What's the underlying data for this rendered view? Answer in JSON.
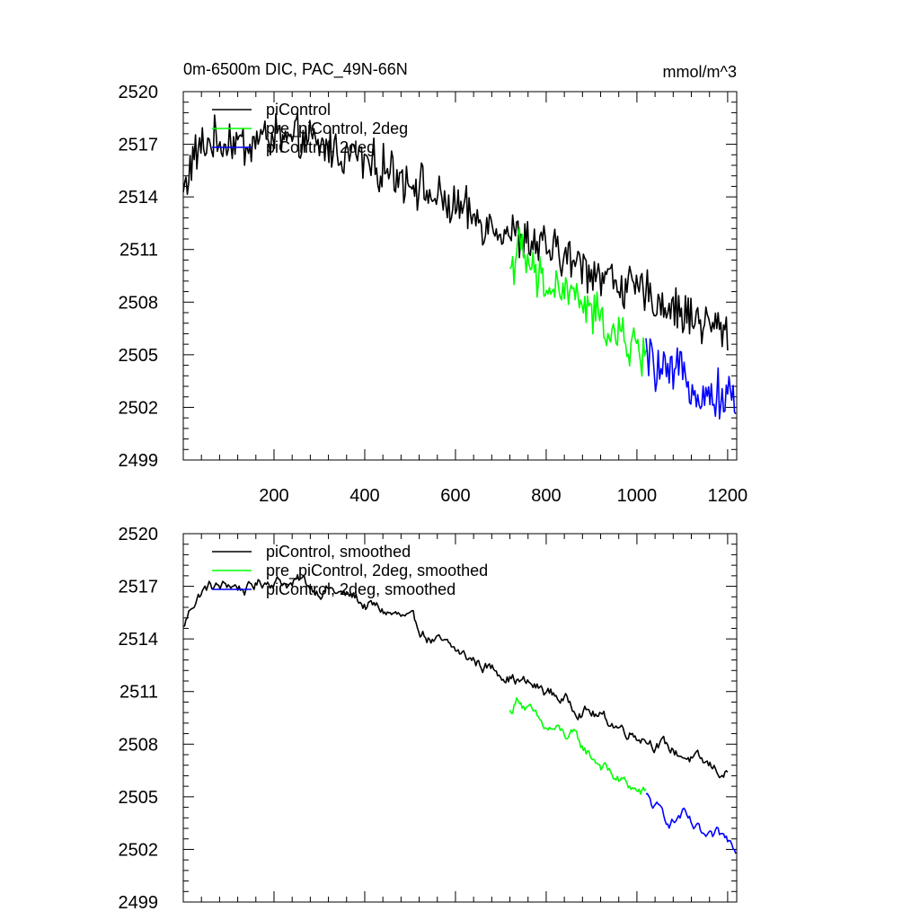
{
  "figure": {
    "title_left": "0m-6500m DIC, PAC_49N-66N",
    "title_right": "mmol/m^3"
  },
  "chart_data": [
    {
      "type": "line",
      "panel": "top",
      "xlim": [
        0,
        1220
      ],
      "ylim": [
        2499,
        2520
      ],
      "xticks": [
        200,
        400,
        600,
        800,
        1000,
        1200
      ],
      "xtick_labels": [
        "200",
        "400",
        "600",
        "800",
        "1000",
        "1200"
      ],
      "yticks": [
        2499,
        2502,
        2505,
        2508,
        2511,
        2514,
        2517,
        2520
      ],
      "ytick_labels": [
        "2499",
        "2502",
        "2505",
        "2508",
        "2511",
        "2514",
        "2517",
        "2520"
      ],
      "legend_position": "top-left",
      "series": [
        {
          "name": "piControl",
          "color": "#000000",
          "x": [
            0,
            20,
            40,
            60,
            80,
            100,
            120,
            140,
            160,
            180,
            200,
            220,
            240,
            260,
            280,
            300,
            320,
            340,
            360,
            380,
            400,
            420,
            440,
            460,
            480,
            500,
            520,
            540,
            560,
            580,
            600,
            620,
            640,
            660,
            680,
            700,
            720,
            740,
            760,
            780,
            800,
            820,
            840,
            860,
            880,
            900,
            920,
            940,
            960,
            980,
            1000,
            1020,
            1040,
            1060,
            1080,
            1100,
            1120,
            1140,
            1160,
            1180,
            1200
          ],
          "values": [
            2514.2,
            2516.1,
            2516.8,
            2517.2,
            2517.0,
            2517.3,
            2517.1,
            2516.9,
            2517.2,
            2517.4,
            2517.5,
            2517.3,
            2517.0,
            2517.4,
            2517.1,
            2516.8,
            2516.9,
            2516.6,
            2516.3,
            2516.5,
            2516.0,
            2515.8,
            2515.6,
            2515.5,
            2515.2,
            2515.0,
            2514.7,
            2514.2,
            2513.8,
            2513.6,
            2513.4,
            2513.1,
            2512.8,
            2512.6,
            2512.4,
            2512.3,
            2512.0,
            2511.6,
            2511.5,
            2511.2,
            2511.1,
            2510.8,
            2510.6,
            2510.3,
            2510.0,
            2509.9,
            2509.6,
            2509.4,
            2509.1,
            2508.8,
            2508.6,
            2508.5,
            2508.1,
            2507.9,
            2507.6,
            2507.4,
            2507.2,
            2507.0,
            2506.7,
            2506.5,
            2506.4
          ]
        },
        {
          "name": "pre_piControl, 2deg",
          "color": "#00ff00",
          "x": [
            720,
            740,
            760,
            780,
            800,
            820,
            840,
            860,
            880,
            900,
            920,
            940,
            960,
            980,
            1000,
            1020
          ],
          "values": [
            2510.0,
            2511.0,
            2510.2,
            2509.3,
            2508.9,
            2508.8,
            2508.6,
            2508.5,
            2507.9,
            2507.3,
            2507.0,
            2506.4,
            2505.9,
            2505.7,
            2505.3,
            2505.1
          ]
        },
        {
          "name": "piControl, 2deg",
          "color": "#0000ff",
          "x": [
            1020,
            1040,
            1060,
            1080,
            1100,
            1120,
            1140,
            1160,
            1180,
            1200,
            1220
          ],
          "values": [
            2505.0,
            2504.3,
            2503.9,
            2503.6,
            2504.2,
            2503.4,
            2502.9,
            2502.5,
            2502.8,
            2502.6,
            2502.4
          ]
        }
      ]
    },
    {
      "type": "line",
      "panel": "bottom",
      "xlim": [
        0,
        1220
      ],
      "ylim": [
        2499,
        2520
      ],
      "xticks": [
        200,
        400,
        600,
        800,
        1000,
        1200
      ],
      "yticks": [
        2499,
        2502,
        2505,
        2508,
        2511,
        2514,
        2517,
        2520
      ],
      "ytick_labels": [
        "2499",
        "2502",
        "2505",
        "2508",
        "2511",
        "2514",
        "2517",
        "2520"
      ],
      "legend_position": "top-left",
      "series": [
        {
          "name": "piControl, smoothed",
          "color": "#000000",
          "x": [
            0,
            20,
            40,
            60,
            80,
            100,
            120,
            140,
            160,
            180,
            200,
            220,
            240,
            260,
            280,
            300,
            320,
            340,
            360,
            380,
            400,
            420,
            440,
            460,
            480,
            500,
            520,
            540,
            560,
            580,
            600,
            620,
            640,
            660,
            680,
            700,
            720,
            740,
            760,
            780,
            800,
            820,
            840,
            860,
            880,
            900,
            920,
            940,
            960,
            980,
            1000,
            1020,
            1040,
            1060,
            1080,
            1100,
            1120,
            1140,
            1160,
            1180,
            1200
          ],
          "values": [
            2514.6,
            2516.0,
            2516.7,
            2517.0,
            2516.9,
            2517.1,
            2517.0,
            2516.8,
            2517.1,
            2517.3,
            2517.4,
            2517.3,
            2517.1,
            2517.3,
            2517.0,
            2516.8,
            2516.9,
            2516.6,
            2516.4,
            2516.4,
            2515.9,
            2515.8,
            2515.6,
            2515.4,
            2515.2,
            2514.9,
            2514.6,
            2514.1,
            2513.8,
            2513.5,
            2513.3,
            2513.0,
            2512.8,
            2512.5,
            2512.3,
            2512.2,
            2511.9,
            2511.6,
            2511.4,
            2511.2,
            2511.0,
            2510.8,
            2510.5,
            2510.2,
            2510.0,
            2509.8,
            2509.5,
            2509.3,
            2509.0,
            2508.8,
            2508.6,
            2508.4,
            2508.1,
            2507.9,
            2507.6,
            2507.4,
            2507.2,
            2506.9,
            2506.7,
            2506.5,
            2506.3
          ]
        },
        {
          "name": "pre_piControl, 2deg, smoothed",
          "color": "#00ff00",
          "x": [
            720,
            740,
            760,
            780,
            800,
            820,
            840,
            860,
            880,
            900,
            920,
            940,
            960,
            980,
            1000,
            1020
          ],
          "values": [
            2509.8,
            2510.7,
            2510.0,
            2509.3,
            2508.8,
            2508.8,
            2508.5,
            2508.4,
            2507.8,
            2507.3,
            2506.9,
            2506.4,
            2505.9,
            2505.7,
            2505.3,
            2505.1
          ]
        },
        {
          "name": "piControl, 2deg, smoothed",
          "color": "#0000ff",
          "x": [
            1020,
            1040,
            1060,
            1080,
            1100,
            1120,
            1140,
            1160,
            1180,
            1200,
            1220
          ],
          "values": [
            2505.0,
            2504.3,
            2503.9,
            2503.6,
            2504.0,
            2503.3,
            2502.8,
            2502.4,
            2502.7,
            2502.5,
            2502.3
          ]
        }
      ]
    }
  ]
}
